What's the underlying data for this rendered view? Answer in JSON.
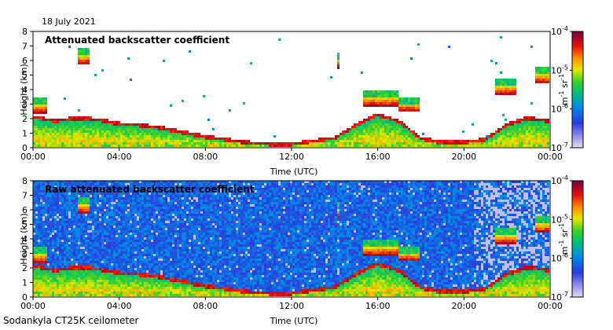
{
  "date": "18 July 2021",
  "footer": "Sodankyla CT25K ceilometer",
  "chart_data": [
    {
      "type": "heatmap",
      "title": "Attenuated backscatter coefficient",
      "xlabel": "Time (UTC)",
      "ylabel": "Height (km)",
      "xticks": [
        "00:00",
        "04:00",
        "08:00",
        "12:00",
        "16:00",
        "20:00",
        "00:00"
      ],
      "xlim_hours": [
        0,
        24
      ],
      "ylim": [
        0,
        8
      ],
      "yticks": [
        0,
        1,
        2,
        3,
        4,
        5,
        6,
        7,
        8
      ],
      "colorbar": {
        "label": "m-1 sr-1",
        "scale": "log",
        "range": [
          1e-07,
          0.0001
        ],
        "ticks": [
          "10-7",
          "10-6",
          "10-5",
          "10-4"
        ]
      },
      "boundary_layer_km": [
        [
          0,
          2.1
        ],
        [
          1,
          1.8
        ],
        [
          2,
          2.0
        ],
        [
          3,
          1.9
        ],
        [
          4,
          1.6
        ],
        [
          5,
          1.5
        ],
        [
          6,
          1.3
        ],
        [
          7,
          1.0
        ],
        [
          8,
          0.7
        ],
        [
          9,
          0.5
        ],
        [
          10,
          0.3
        ],
        [
          11,
          0.2
        ],
        [
          12,
          0.2
        ],
        [
          13,
          0.4
        ],
        [
          14,
          0.6
        ],
        [
          15,
          1.5
        ],
        [
          16,
          2.2
        ],
        [
          17,
          1.8
        ],
        [
          18,
          0.6
        ],
        [
          19,
          0.3
        ],
        [
          20,
          0.3
        ],
        [
          21,
          0.5
        ],
        [
          22,
          1.5
        ],
        [
          23,
          2.0
        ],
        [
          24,
          1.8
        ]
      ],
      "cloud_layers": [
        {
          "t_start": 0.0,
          "t_end": 0.7,
          "base_km": 2.4
        },
        {
          "t_start": 2.1,
          "t_end": 2.6,
          "base_km": 5.8
        },
        {
          "t_start": 14.1,
          "t_end": 14.3,
          "base_km": 5.5
        },
        {
          "t_start": 15.3,
          "t_end": 17.0,
          "base_km": 2.9
        },
        {
          "t_start": 17.0,
          "t_end": 18.0,
          "base_km": 2.5
        },
        {
          "t_start": 21.5,
          "t_end": 22.5,
          "base_km": 3.7
        },
        {
          "t_start": 23.3,
          "t_end": 24.0,
          "base_km": 4.5
        }
      ]
    },
    {
      "type": "heatmap",
      "title": "Raw attenuated backscatter coefficient",
      "xlabel": "Time (UTC)",
      "ylabel": "Height (km)",
      "xticks": [
        "00:00",
        "04:00",
        "08:00",
        "12:00",
        "16:00",
        "20:00",
        "00:00"
      ],
      "xlim_hours": [
        0,
        24
      ],
      "ylim": [
        0,
        8
      ],
      "yticks": [
        0,
        1,
        2,
        3,
        4,
        5,
        6,
        7,
        8
      ],
      "colorbar": {
        "label": "m-1 sr-1",
        "scale": "log",
        "range": [
          1e-07,
          0.0001
        ],
        "ticks": [
          "10-7",
          "10-6",
          "10-5",
          "10-4"
        ]
      },
      "noise_floor": "blue-dominant, decreasing after 20:00"
    }
  ]
}
